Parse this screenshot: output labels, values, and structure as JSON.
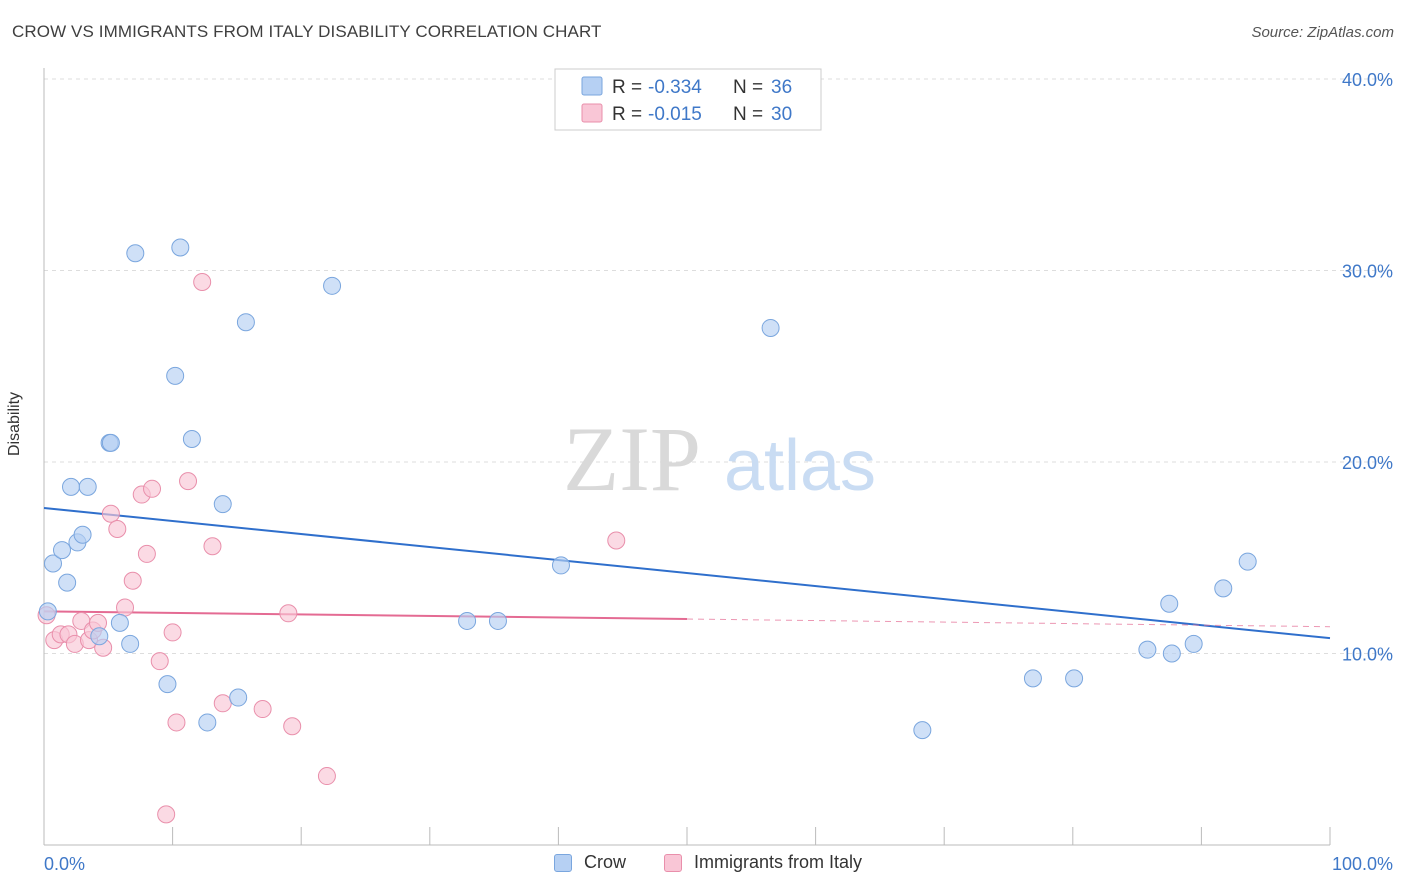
{
  "header": {
    "title": "CROW VS IMMIGRANTS FROM ITALY DISABILITY CORRELATION CHART",
    "source": "Source: ZipAtlas.com"
  },
  "watermark": {
    "zip": "ZIP",
    "atlas": "atlas"
  },
  "legend": {
    "rows": [
      {
        "r_label": "R = ",
        "r_value": "-0.334",
        "n_label": "N = ",
        "n_value": "36"
      },
      {
        "r_label": "R = ",
        "r_value": "-0.015",
        "n_label": "N = ",
        "n_value": "30"
      }
    ]
  },
  "bottom_legend": {
    "crow": "Crow",
    "italy": "Immigrants from Italy"
  },
  "colors": {
    "crow_fill": "#b6d0f3",
    "crow_stroke": "#7aa6de",
    "crow_line": "#2f6fcc",
    "italy_fill": "#f9c6d6",
    "italy_stroke": "#e98fab",
    "italy_line": "#e46b93",
    "axis_text": "#3f78c8",
    "grid": "#dddddd"
  },
  "chart_data": {
    "type": "scatter",
    "title": "CROW VS IMMIGRANTS FROM ITALY DISABILITY CORRELATION CHART",
    "xlabel": "",
    "ylabel": "Disability",
    "xlim": [
      0,
      100
    ],
    "ylim": [
      0,
      40
    ],
    "x_tick_labels": [
      "0.0%",
      "100.0%"
    ],
    "y_ticks": [
      10,
      20,
      30,
      40
    ],
    "y_tick_labels": [
      "10.0%",
      "20.0%",
      "30.0%",
      "40.0%"
    ],
    "series": [
      {
        "name": "Crow",
        "r": -0.334,
        "n": 36,
        "trend": {
          "x": [
            0,
            100
          ],
          "y": [
            17.6,
            10.8
          ]
        },
        "points": [
          {
            "x": 0.3,
            "y": 12.2
          },
          {
            "x": 0.7,
            "y": 14.7
          },
          {
            "x": 1.4,
            "y": 15.4
          },
          {
            "x": 1.8,
            "y": 13.7
          },
          {
            "x": 2.1,
            "y": 18.7
          },
          {
            "x": 2.6,
            "y": 15.8
          },
          {
            "x": 3.0,
            "y": 16.2
          },
          {
            "x": 3.4,
            "y": 18.7
          },
          {
            "x": 4.3,
            "y": 10.9
          },
          {
            "x": 5.1,
            "y": 21.0
          },
          {
            "x": 5.2,
            "y": 21.0
          },
          {
            "x": 5.9,
            "y": 11.6
          },
          {
            "x": 6.7,
            "y": 10.5
          },
          {
            "x": 7.1,
            "y": 30.9
          },
          {
            "x": 9.6,
            "y": 8.4
          },
          {
            "x": 10.2,
            "y": 24.5
          },
          {
            "x": 10.6,
            "y": 31.2
          },
          {
            "x": 11.5,
            "y": 21.2
          },
          {
            "x": 12.7,
            "y": 6.4
          },
          {
            "x": 13.9,
            "y": 17.8
          },
          {
            "x": 15.1,
            "y": 7.7
          },
          {
            "x": 15.7,
            "y": 27.3
          },
          {
            "x": 22.4,
            "y": 29.2
          },
          {
            "x": 32.9,
            "y": 11.7
          },
          {
            "x": 35.3,
            "y": 11.7
          },
          {
            "x": 40.2,
            "y": 14.6
          },
          {
            "x": 56.5,
            "y": 27.0
          },
          {
            "x": 68.3,
            "y": 6.0
          },
          {
            "x": 76.9,
            "y": 8.7
          },
          {
            "x": 80.1,
            "y": 8.7
          },
          {
            "x": 85.8,
            "y": 10.2
          },
          {
            "x": 87.5,
            "y": 12.6
          },
          {
            "x": 87.7,
            "y": 10.0
          },
          {
            "x": 89.4,
            "y": 10.5
          },
          {
            "x": 91.7,
            "y": 13.4
          },
          {
            "x": 93.6,
            "y": 14.8
          }
        ]
      },
      {
        "name": "Immigrants from Italy",
        "r": -0.015,
        "n": 30,
        "trend": {
          "x": [
            0,
            50
          ],
          "y": [
            12.2,
            11.8
          ]
        },
        "trend_dashed": {
          "x": [
            50,
            100
          ],
          "y": [
            11.8,
            11.4
          ]
        },
        "points": [
          {
            "x": 0.2,
            "y": 12.0
          },
          {
            "x": 0.8,
            "y": 10.7
          },
          {
            "x": 1.3,
            "y": 11.0
          },
          {
            "x": 1.9,
            "y": 11.0
          },
          {
            "x": 2.4,
            "y": 10.5
          },
          {
            "x": 2.9,
            "y": 11.7
          },
          {
            "x": 3.5,
            "y": 10.7
          },
          {
            "x": 3.8,
            "y": 11.2
          },
          {
            "x": 4.2,
            "y": 11.6
          },
          {
            "x": 4.6,
            "y": 10.3
          },
          {
            "x": 5.2,
            "y": 17.3
          },
          {
            "x": 5.7,
            "y": 16.5
          },
          {
            "x": 6.3,
            "y": 12.4
          },
          {
            "x": 6.9,
            "y": 13.8
          },
          {
            "x": 7.6,
            "y": 18.3
          },
          {
            "x": 8.0,
            "y": 15.2
          },
          {
            "x": 8.4,
            "y": 18.6
          },
          {
            "x": 9.0,
            "y": 9.6
          },
          {
            "x": 9.5,
            "y": 1.6
          },
          {
            "x": 10.0,
            "y": 11.1
          },
          {
            "x": 10.3,
            "y": 6.4
          },
          {
            "x": 11.2,
            "y": 19.0
          },
          {
            "x": 12.3,
            "y": 29.4
          },
          {
            "x": 13.1,
            "y": 15.6
          },
          {
            "x": 13.9,
            "y": 7.4
          },
          {
            "x": 17.0,
            "y": 7.1
          },
          {
            "x": 19.0,
            "y": 12.1
          },
          {
            "x": 19.3,
            "y": 6.2
          },
          {
            "x": 22.0,
            "y": 3.6
          },
          {
            "x": 44.5,
            "y": 15.9
          }
        ]
      }
    ]
  }
}
